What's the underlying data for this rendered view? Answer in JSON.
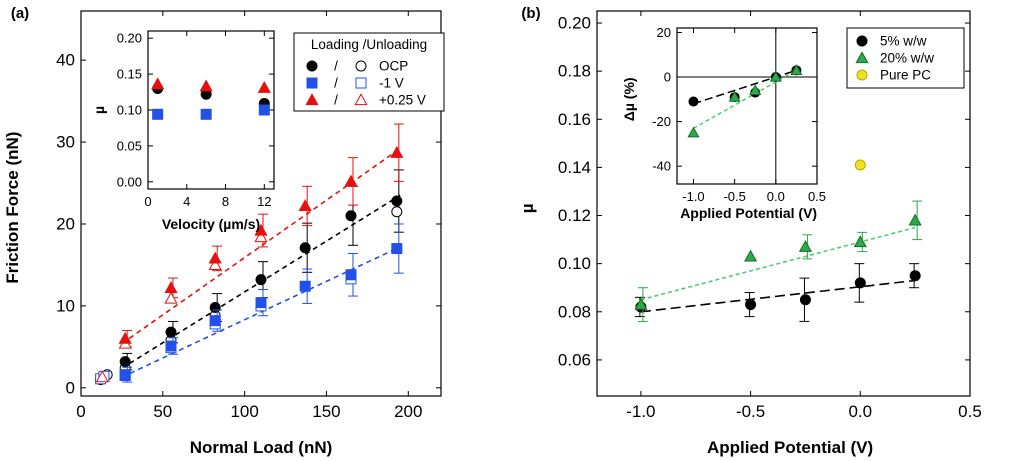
{
  "chart_data": [
    {
      "panel": "(a)",
      "type": "scatter",
      "xlabel": "Normal Load (nN)",
      "ylabel": "Friction Force (nN)",
      "xlim": [
        0,
        220
      ],
      "ylim": [
        -1,
        46
      ],
      "xticks": [
        0,
        50,
        100,
        150,
        200
      ],
      "yticks": [
        0,
        10,
        20,
        30,
        40
      ],
      "legend_title": "Loading /Unloading",
      "legend_sep": "/",
      "legend_position": "top-right",
      "series": [
        {
          "name": "OCP",
          "color": "#000000",
          "marker": "circle",
          "x": [
            27,
            55,
            82,
            110,
            137,
            165,
            193
          ],
          "y": [
            3.2,
            6.8,
            9.8,
            13.2,
            17.1,
            21.0,
            22.8
          ],
          "err": [
            1.0,
            1.3,
            1.7,
            2.2,
            3.0,
            3.6,
            3.8
          ],
          "unload_x": [
            12,
            14,
            16,
            27,
            55,
            82,
            193
          ],
          "unload_y": [
            1.0,
            1.4,
            1.6,
            2.4,
            5.8,
            8.8,
            21.5
          ],
          "fit": [
            [
              25,
              2.4
            ],
            [
              195,
              23.5
            ]
          ]
        },
        {
          "name": "-1 V",
          "color": "#2350e8",
          "marker": "square",
          "x": [
            27,
            55,
            82,
            110,
            137,
            165,
            193
          ],
          "y": [
            1.6,
            5.1,
            8.2,
            10.4,
            12.4,
            13.8,
            17.0
          ],
          "err": [
            0.9,
            1.0,
            1.3,
            1.6,
            2.1,
            2.6,
            3.0
          ],
          "unload_x": [
            12,
            14,
            27,
            55,
            82,
            110,
            165
          ],
          "unload_y": [
            1.1,
            1.4,
            1.5,
            4.9,
            7.8,
            10.0,
            13.3
          ],
          "fit": [
            [
              25,
              1.3
            ],
            [
              195,
              17.2
            ]
          ]
        },
        {
          "name": "+0.25 V",
          "color": "#e8100f",
          "marker": "triangle",
          "x": [
            27,
            55,
            82,
            110,
            137,
            165,
            193
          ],
          "y": [
            6.0,
            12.2,
            15.8,
            19.2,
            22.2,
            25.2,
            28.7
          ],
          "err": [
            1.0,
            1.2,
            1.5,
            2.0,
            2.4,
            2.9,
            3.5
          ],
          "unload_x": [
            13,
            27,
            55,
            82,
            110
          ],
          "unload_y": [
            1.3,
            5.4,
            10.9,
            15.0,
            18.4
          ],
          "fit": [
            [
              25,
              5.4
            ],
            [
              195,
              29.2
            ]
          ]
        }
      ],
      "inset": {
        "xlabel": "Velocity (µm/s)",
        "ylabel": "µ",
        "xlim": [
          0,
          13
        ],
        "ylim": [
          -0.01,
          0.21
        ],
        "xticks": [
          0,
          4,
          8,
          12
        ],
        "yticks": [
          0.0,
          0.05,
          0.1,
          0.15,
          0.2
        ],
        "ytick_labels": [
          "0.00",
          "0.05",
          "0.10",
          "0.15",
          "0.20"
        ],
        "series": [
          {
            "name": "OCP",
            "color": "#000000",
            "marker": "circle",
            "x": [
              1,
              6,
              12
            ],
            "y": [
              0.13,
              0.122,
              0.109
            ]
          },
          {
            "name": "-1 V",
            "color": "#2350e8",
            "marker": "square",
            "x": [
              1,
              6,
              12
            ],
            "y": [
              0.094,
              0.094,
              0.1
            ]
          },
          {
            "name": "+0.25 V",
            "color": "#e8100f",
            "marker": "triangle",
            "x": [
              1,
              6,
              12
            ],
            "y": [
              0.136,
              0.133,
              0.131
            ]
          }
        ]
      }
    },
    {
      "panel": "(b)",
      "type": "scatter",
      "xlabel": "Applied Potential (V)",
      "ylabel": "µ",
      "xlim": [
        -1.2,
        0.5
      ],
      "ylim": [
        0.045,
        0.205
      ],
      "xticks": [
        -1.0,
        -0.5,
        0.0,
        0.5
      ],
      "xtick_labels": [
        "-1.0",
        "-0.5",
        "0.0",
        "0.5"
      ],
      "yticks": [
        0.06,
        0.08,
        0.1,
        0.12,
        0.14,
        0.16,
        0.18,
        0.2
      ],
      "ytick_labels": [
        "0.06",
        "0.08",
        "0.10",
        "0.12",
        "0.14",
        "0.16",
        "0.18",
        "0.20"
      ],
      "legend_position": "top-right",
      "series": [
        {
          "name": "5% w/w",
          "color": "#000000",
          "marker": "circle",
          "x": [
            -1.0,
            -0.5,
            -0.25,
            0.0,
            0.25
          ],
          "y": [
            0.082,
            0.083,
            0.085,
            0.092,
            0.095
          ],
          "err": [
            0.004,
            0.005,
            0.009,
            0.008,
            0.005
          ],
          "fit": [
            [
              -1.0,
              0.08
            ],
            [
              0.25,
              0.093
            ]
          ]
        },
        {
          "name": "20% w/w",
          "color": "#2aaa4a",
          "marker": "triangle",
          "x": [
            -1.0,
            -0.5,
            -0.25,
            0.0,
            0.25
          ],
          "y": [
            0.083,
            0.103,
            0.107,
            0.109,
            0.118
          ],
          "err": [
            0.007,
            0.0,
            0.005,
            0.004,
            0.008
          ],
          "fit": [
            [
              -1.0,
              0.085
            ],
            [
              0.25,
              0.115
            ]
          ]
        },
        {
          "name": "Pure PC",
          "color": "#f0e020",
          "marker": "circle",
          "x": [
            0.0
          ],
          "y": [
            0.141
          ]
        }
      ],
      "inset": {
        "xlabel": "Applied Potential (V)",
        "ylabel": "Δµ (%)",
        "xlim": [
          -1.2,
          0.5
        ],
        "ylim": [
          -48,
          22
        ],
        "xticks": [
          -1.0,
          -0.5,
          0.0,
          0.5
        ],
        "xtick_labels": [
          "-1.0",
          "-0.5",
          "0.0",
          "0.5"
        ],
        "yticks": [
          -40,
          -20,
          0,
          20
        ],
        "series": [
          {
            "name": "5% w/w",
            "color": "#000000",
            "marker": "circle",
            "x": [
              -1.0,
              -0.5,
              -0.25,
              0.0,
              0.25
            ],
            "y": [
              -11,
              -9,
              -7,
              0,
              3
            ],
            "fit": [
              [
                -1.0,
                -12
              ],
              [
                0.25,
                3
              ]
            ]
          },
          {
            "name": "20% w/w",
            "color": "#2aaa4a",
            "marker": "triangle",
            "x": [
              -1.0,
              -0.5,
              -0.25,
              0.0,
              0.25
            ],
            "y": [
              -25,
              -9,
              -6,
              0,
              3
            ],
            "fit": [
              [
                -1.0,
                -23
              ],
              [
                0.25,
                3
              ]
            ]
          }
        ]
      }
    }
  ]
}
